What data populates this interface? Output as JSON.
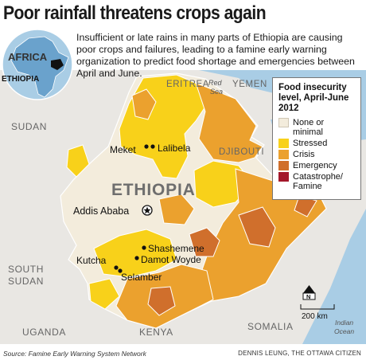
{
  "title": "Poor rainfall threatens crops again",
  "intro": "Insufficient or late rains in many parts of Ethiopia are causing poor crops and failures, leading to a famine early warning organization to predict food shortage and emergencies between April and June.",
  "inset": {
    "continent_label": "AFRICA",
    "country_label": "ETHIOPIA"
  },
  "map_labels": {
    "eritrea": "ERITREA",
    "yemen": "YEMEN",
    "red_sea": "Red Sea",
    "sudan": "SUDAN",
    "djibouti": "DJIBOUTI",
    "ethiopia": "ETHIOPIA",
    "south_sudan": "SOUTH SUDAN",
    "uganda": "UGANDA",
    "kenya": "KENYA",
    "somalia": "SOMALIA",
    "indian_ocean": "Indian Ocean"
  },
  "cities": {
    "meket": "Meket",
    "lalibela": "Lalibela",
    "addis_ababa": "Addis Ababa",
    "shashemene": "Shashemene",
    "damot_woyde": "Damot Woyde",
    "kutcha": "Kutcha",
    "selamber": "Selamber"
  },
  "legend": {
    "title": "Food insecurity level, April-June 2012",
    "items": [
      {
        "label": "None or minimal",
        "color": "#f3ecdc"
      },
      {
        "label": "Stressed",
        "color": "#f8d11a"
      },
      {
        "label": "Crisis",
        "color": "#eba12e"
      },
      {
        "label": "Emergency",
        "color": "#d06f2c"
      },
      {
        "label": "Catastrophe/ Famine",
        "color": "#a3172a"
      }
    ]
  },
  "scale": {
    "north": "N",
    "distance": "200 km"
  },
  "colors": {
    "sea": "#a9cde5",
    "land_other": "#e9e7e3",
    "border": "#ffffff",
    "none": "#f3ecdc",
    "stressed": "#f8d11a",
    "crisis": "#eba12e",
    "emergency": "#d06f2c"
  },
  "source": "Source: Famine Early Warning System Network",
  "credit": "DENNIS LEUNG, THE OTTAWA CITIZEN"
}
